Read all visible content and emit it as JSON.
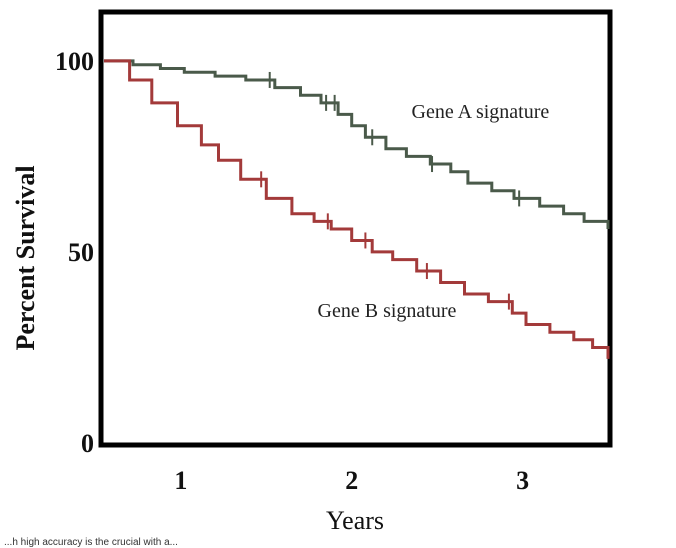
{
  "chart_data": {
    "type": "line",
    "title": "",
    "xlabel": "Years",
    "ylabel": "Percent Survival",
    "xlim": [
      0.55,
      3.5
    ],
    "ylim": [
      0,
      112
    ],
    "x_ticks": [
      1,
      2,
      3
    ],
    "y_ticks": [
      0,
      50,
      100
    ],
    "grid": false,
    "colors": {
      "frame": "#000000",
      "gene_a": "#4a5a4a",
      "gene_b": "#a33a3a"
    },
    "series": [
      {
        "name": "Gene A signature",
        "step": true,
        "points": [
          [
            0.55,
            100
          ],
          [
            0.72,
            99
          ],
          [
            0.88,
            98
          ],
          [
            1.02,
            97
          ],
          [
            1.2,
            96
          ],
          [
            1.38,
            95
          ],
          [
            1.55,
            93
          ],
          [
            1.7,
            91
          ],
          [
            1.82,
            89
          ],
          [
            1.92,
            86
          ],
          [
            2.0,
            83
          ],
          [
            2.08,
            80
          ],
          [
            2.2,
            77
          ],
          [
            2.32,
            75
          ],
          [
            2.46,
            73
          ],
          [
            2.58,
            71
          ],
          [
            2.68,
            68
          ],
          [
            2.82,
            66
          ],
          [
            2.95,
            64
          ],
          [
            3.1,
            62
          ],
          [
            3.24,
            60
          ],
          [
            3.36,
            58
          ],
          [
            3.5,
            56
          ]
        ],
        "censor_x": [
          1.52,
          1.85,
          1.9,
          2.12,
          2.47,
          2.98
        ]
      },
      {
        "name": "Gene B signature",
        "step": true,
        "points": [
          [
            0.55,
            100
          ],
          [
            0.7,
            95
          ],
          [
            0.83,
            89
          ],
          [
            0.98,
            83
          ],
          [
            1.12,
            78
          ],
          [
            1.22,
            74
          ],
          [
            1.35,
            69
          ],
          [
            1.5,
            64
          ],
          [
            1.65,
            60
          ],
          [
            1.78,
            58
          ],
          [
            1.88,
            56
          ],
          [
            2.0,
            53
          ],
          [
            2.12,
            50
          ],
          [
            2.24,
            48
          ],
          [
            2.38,
            45
          ],
          [
            2.52,
            42
          ],
          [
            2.66,
            39
          ],
          [
            2.8,
            37
          ],
          [
            2.94,
            34
          ],
          [
            3.02,
            31
          ],
          [
            3.16,
            29
          ],
          [
            3.3,
            27
          ],
          [
            3.41,
            25
          ],
          [
            3.5,
            22
          ]
        ],
        "censor_x": [
          1.47,
          1.86,
          2.08,
          2.44,
          2.92
        ]
      }
    ],
    "annotations": [
      {
        "text": "Gene A signature",
        "x": 2.35,
        "y": 85
      },
      {
        "text": "Gene B signature",
        "x": 1.8,
        "y": 33
      }
    ]
  },
  "caption": "...h high accuracy is the crucial with a..."
}
